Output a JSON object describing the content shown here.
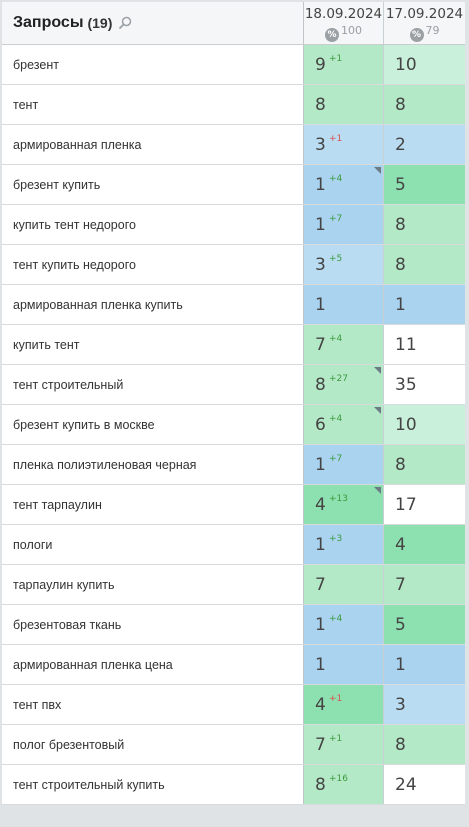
{
  "header": {
    "title": "Запросы",
    "count": "(19)",
    "dates": [
      {
        "label": "18.09.2024",
        "percent_icon": "%",
        "percent": "100"
      },
      {
        "label": "17.09.2024",
        "percent_icon": "%",
        "percent": "79"
      }
    ]
  },
  "rows": [
    {
      "query": "брезент",
      "d1": {
        "pos": "9",
        "chg": "+1",
        "dir": "up",
        "color": "c-green",
        "marker": false
      },
      "d2": {
        "pos": "10",
        "color": "c-lgreen"
      }
    },
    {
      "query": "тент",
      "d1": {
        "pos": "8",
        "chg": "",
        "dir": "",
        "color": "c-green",
        "marker": false
      },
      "d2": {
        "pos": "8",
        "color": "c-green"
      }
    },
    {
      "query": "армированная пленка",
      "d1": {
        "pos": "3",
        "chg": "+1",
        "dir": "down",
        "color": "c-lblue",
        "marker": false
      },
      "d2": {
        "pos": "2",
        "color": "c-lblue"
      }
    },
    {
      "query": "брезент купить",
      "d1": {
        "pos": "1",
        "chg": "+4",
        "dir": "up",
        "color": "c-blue",
        "marker": true
      },
      "d2": {
        "pos": "5",
        "color": "c-dgreen"
      }
    },
    {
      "query": "купить тент недорого",
      "d1": {
        "pos": "1",
        "chg": "+7",
        "dir": "up",
        "color": "c-blue",
        "marker": false
      },
      "d2": {
        "pos": "8",
        "color": "c-green"
      }
    },
    {
      "query": "тент купить недорого",
      "d1": {
        "pos": "3",
        "chg": "+5",
        "dir": "up",
        "color": "c-lblue",
        "marker": false
      },
      "d2": {
        "pos": "8",
        "color": "c-green"
      }
    },
    {
      "query": "армированная пленка купить",
      "d1": {
        "pos": "1",
        "chg": "",
        "dir": "",
        "color": "c-blue",
        "marker": false
      },
      "d2": {
        "pos": "1",
        "color": "c-blue"
      }
    },
    {
      "query": "купить тент",
      "d1": {
        "pos": "7",
        "chg": "+4",
        "dir": "up",
        "color": "c-green",
        "marker": false
      },
      "d2": {
        "pos": "11",
        "color": "c-white"
      }
    },
    {
      "query": "тент строительный",
      "d1": {
        "pos": "8",
        "chg": "+27",
        "dir": "up",
        "color": "c-green",
        "marker": true
      },
      "d2": {
        "pos": "35",
        "color": "c-white"
      }
    },
    {
      "query": "брезент купить в москве",
      "d1": {
        "pos": "6",
        "chg": "+4",
        "dir": "up",
        "color": "c-green",
        "marker": true
      },
      "d2": {
        "pos": "10",
        "color": "c-lgreen"
      }
    },
    {
      "query": "пленка полиэтиленовая черная",
      "d1": {
        "pos": "1",
        "chg": "+7",
        "dir": "up",
        "color": "c-blue",
        "marker": false
      },
      "d2": {
        "pos": "8",
        "color": "c-green"
      }
    },
    {
      "query": "тент тарпаулин",
      "d1": {
        "pos": "4",
        "chg": "+13",
        "dir": "up",
        "color": "c-dgreen",
        "marker": true
      },
      "d2": {
        "pos": "17",
        "color": "c-white"
      }
    },
    {
      "query": "пологи",
      "d1": {
        "pos": "1",
        "chg": "+3",
        "dir": "up",
        "color": "c-blue",
        "marker": false
      },
      "d2": {
        "pos": "4",
        "color": "c-dgreen"
      }
    },
    {
      "query": "тарпаулин купить",
      "d1": {
        "pos": "7",
        "chg": "",
        "dir": "",
        "color": "c-green",
        "marker": false
      },
      "d2": {
        "pos": "7",
        "color": "c-green"
      }
    },
    {
      "query": "брезентовая ткань",
      "d1": {
        "pos": "1",
        "chg": "+4",
        "dir": "up",
        "color": "c-blue",
        "marker": false
      },
      "d2": {
        "pos": "5",
        "color": "c-dgreen"
      }
    },
    {
      "query": "армированная пленка цена",
      "d1": {
        "pos": "1",
        "chg": "",
        "dir": "",
        "color": "c-blue",
        "marker": false
      },
      "d2": {
        "pos": "1",
        "color": "c-blue"
      }
    },
    {
      "query": "тент пвх",
      "d1": {
        "pos": "4",
        "chg": "+1",
        "dir": "down",
        "color": "c-dgreen",
        "marker": false
      },
      "d2": {
        "pos": "3",
        "color": "c-lblue"
      }
    },
    {
      "query": "полог брезентовый",
      "d1": {
        "pos": "7",
        "chg": "+1",
        "dir": "up",
        "color": "c-green",
        "marker": false
      },
      "d2": {
        "pos": "8",
        "color": "c-green"
      }
    },
    {
      "query": "тент строительный купить",
      "d1": {
        "pos": "8",
        "chg": "+16",
        "dir": "up",
        "color": "c-green",
        "marker": false
      },
      "d2": {
        "pos": "24",
        "color": "c-white"
      }
    }
  ]
}
